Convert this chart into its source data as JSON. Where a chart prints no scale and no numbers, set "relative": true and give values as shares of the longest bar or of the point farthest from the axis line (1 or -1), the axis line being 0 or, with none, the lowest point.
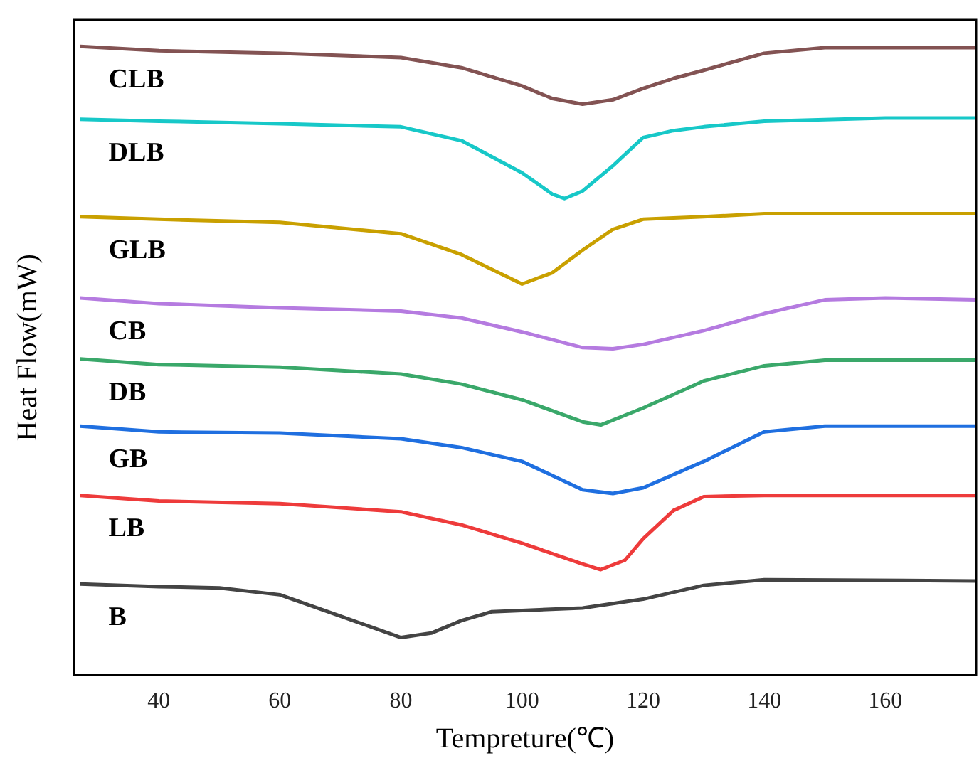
{
  "chart_data": {
    "type": "line",
    "xlabel": "Tempreture(℃)",
    "ylabel": "Heat Flow(mW)",
    "relative": true,
    "xlim": [
      26,
      175
    ],
    "xticks": [
      40,
      60,
      80,
      100,
      120,
      140,
      160
    ],
    "grid": false,
    "legend": false,
    "marker": "none",
    "line_style": "solid",
    "series": [
      {
        "name": "CLB",
        "color": "#835353",
        "x": [
          27,
          40,
          60,
          80,
          90,
          100,
          105,
          110,
          115,
          120,
          125,
          130,
          140,
          150,
          160,
          175
        ],
        "values": [
          1.0,
          0.993,
          0.989,
          0.982,
          0.966,
          0.937,
          0.917,
          0.908,
          0.915,
          0.933,
          0.949,
          0.962,
          0.989,
          0.998,
          0.998,
          0.998
        ]
      },
      {
        "name": "DLB",
        "color": "#17c8c8",
        "x": [
          27,
          40,
          60,
          80,
          90,
          100,
          105,
          107,
          110,
          115,
          120,
          125,
          130,
          140,
          160,
          175
        ],
        "values": [
          0.884,
          0.881,
          0.877,
          0.872,
          0.85,
          0.799,
          0.765,
          0.758,
          0.77,
          0.81,
          0.855,
          0.866,
          0.872,
          0.881,
          0.886,
          0.886
        ]
      },
      {
        "name": "GLB",
        "color": "#c9a000",
        "x": [
          27,
          40,
          60,
          80,
          90,
          100,
          105,
          110,
          115,
          120,
          130,
          140,
          175
        ],
        "values": [
          0.729,
          0.725,
          0.72,
          0.702,
          0.669,
          0.622,
          0.64,
          0.676,
          0.709,
          0.725,
          0.729,
          0.734,
          0.734
        ]
      },
      {
        "name": "CB",
        "color": "#b57be0",
        "x": [
          27,
          40,
          60,
          80,
          90,
          100,
          110,
          115,
          120,
          130,
          140,
          150,
          160,
          175
        ],
        "values": [
          0.6,
          0.591,
          0.584,
          0.579,
          0.568,
          0.546,
          0.521,
          0.519,
          0.526,
          0.548,
          0.575,
          0.597,
          0.6,
          0.597
        ]
      },
      {
        "name": "DB",
        "color": "#3aa86a",
        "x": [
          27,
          40,
          60,
          80,
          90,
          100,
          110,
          113,
          120,
          130,
          140,
          150,
          175
        ],
        "values": [
          0.503,
          0.494,
          0.49,
          0.479,
          0.463,
          0.438,
          0.403,
          0.398,
          0.425,
          0.468,
          0.492,
          0.501,
          0.501
        ]
      },
      {
        "name": "GB",
        "color": "#1f6fe0",
        "x": [
          27,
          40,
          60,
          80,
          90,
          100,
          110,
          115,
          120,
          130,
          140,
          150,
          175
        ],
        "values": [
          0.396,
          0.387,
          0.385,
          0.376,
          0.362,
          0.34,
          0.295,
          0.289,
          0.298,
          0.34,
          0.387,
          0.396,
          0.396
        ]
      },
      {
        "name": "LB",
        "color": "#ee3b3b",
        "x": [
          27,
          40,
          60,
          80,
          90,
          100,
          110,
          113,
          117,
          120,
          125,
          130,
          140,
          175
        ],
        "values": [
          0.286,
          0.277,
          0.273,
          0.26,
          0.239,
          0.21,
          0.177,
          0.168,
          0.183,
          0.217,
          0.262,
          0.284,
          0.286,
          0.286
        ]
      },
      {
        "name": "B",
        "color": "#444444",
        "x": [
          27,
          40,
          50,
          60,
          70,
          80,
          85,
          90,
          95,
          100,
          110,
          120,
          130,
          140,
          175
        ],
        "values": [
          0.145,
          0.141,
          0.139,
          0.128,
          0.094,
          0.06,
          0.067,
          0.087,
          0.101,
          0.103,
          0.107,
          0.121,
          0.143,
          0.152,
          0.15
        ]
      }
    ]
  }
}
